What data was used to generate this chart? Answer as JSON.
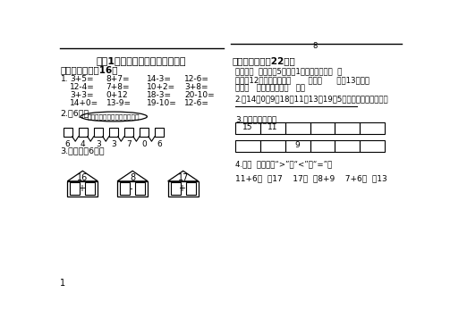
{
  "bg_color": "#ffffff",
  "title": "小学1年级数学第一学期期末考试",
  "section1_title": "一、算一算。（16）",
  "section2_title": "二、填一填。（22分）",
  "row1": [
    "3+5=",
    "8+7=",
    "14-3=",
    "12-6="
  ],
  "row2": [
    "12-4=",
    "7+8=",
    "10+2=",
    "3+8="
  ],
  "row3": [
    "3+3=",
    "0+12",
    "18-3=",
    "20-10="
  ],
  "row4": [
    "14+0=",
    "13-9=",
    "19-10=",
    "12-6="
  ],
  "sub2_title": "2.（6分）",
  "sub2_text": "好美的数字桥，你能搞完吗？",
  "bridge_nums": [
    "6",
    "4",
    "3",
    "3",
    "7",
    "0",
    "6"
  ],
  "sub3_title": "3.造房子（6分）",
  "house_nums": [
    "16",
    "8",
    "17"
  ],
  "house_ops": [
    "+",
    "-",
    "+"
  ],
  "right_text1": "里面有（  ）个十，5个一和1个十合起来是（  ）",
  "right_text2": "写出和12相邻的两个数（       ）和（      ），13的个位",
  "right_text3": "上是（   ），十位上是（   ）。",
  "right_sec2": "2.抂14、0、9、18、11、13、19、5按大到小的顺序排列。",
  "right_sec3": "3.按规律填一填。",
  "grid1_vals": [
    "15",
    "11",
    "",
    "",
    "",
    ""
  ],
  "grid2_vals": [
    "",
    "",
    "9",
    "",
    "",
    ""
  ],
  "right_sec4": "4.在（  ）里填上“>”、“<”、“=”。",
  "right_sec4b": "11+6（  ）17    17（  ）8+9    7+6（  ）13",
  "page_num": "1",
  "score_label": "8"
}
